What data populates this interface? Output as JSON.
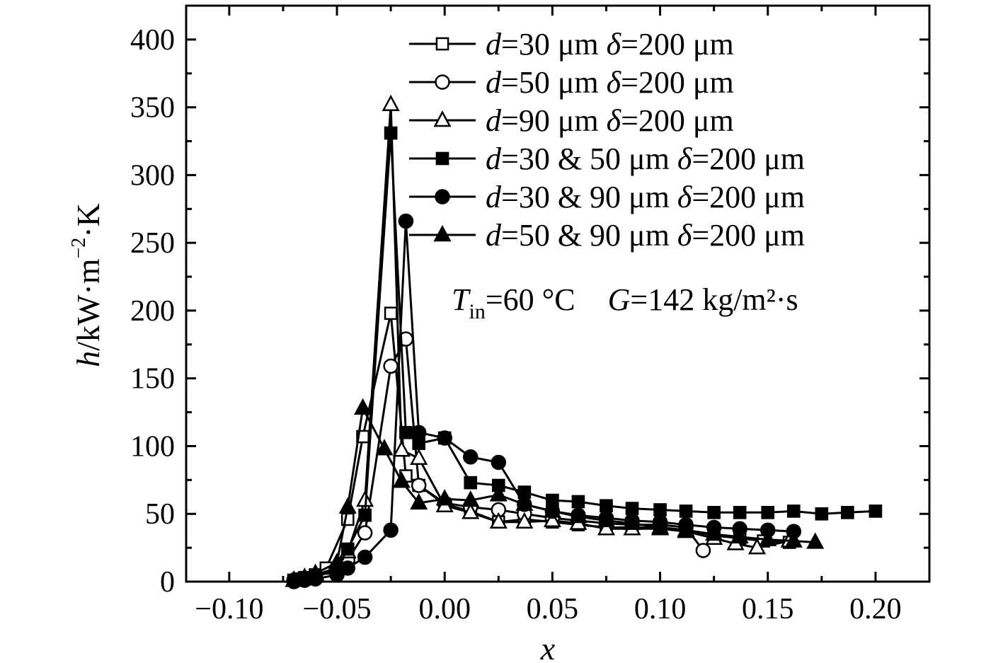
{
  "chart_data": {
    "type": "line",
    "xlabel": "x",
    "ylabel_parts": [
      "h",
      "/kW·m",
      "−2",
      "·K"
    ],
    "xlim": [
      -0.12,
      0.225
    ],
    "ylim": [
      0,
      425
    ],
    "x_ticks": [
      -0.1,
      -0.05,
      0.0,
      0.05,
      0.1,
      0.15,
      0.2
    ],
    "x_tick_labels": [
      "−0.10",
      "−0.05",
      "0.00",
      "0.05",
      "0.10",
      "0.15",
      "0.20"
    ],
    "y_ticks": [
      0,
      50,
      100,
      150,
      200,
      250,
      300,
      350,
      400
    ],
    "y_tick_labels": [
      "0",
      "50",
      "100",
      "150",
      "200",
      "250",
      "300",
      "350",
      "400"
    ],
    "annotation": {
      "T_sym": "T",
      "T_sub": "in",
      "T_value": "=60 °C",
      "G_sym": "G",
      "G_value": "=142 kg/m²·s"
    },
    "series": [
      {
        "name_parts": [
          "d",
          "=30 μm ",
          "δ",
          "=200 μm"
        ],
        "marker": "square-open",
        "points": [
          [
            -0.07,
            1
          ],
          [
            -0.068,
            2
          ],
          [
            -0.065,
            3
          ],
          [
            -0.06,
            5
          ],
          [
            -0.055,
            10
          ],
          [
            -0.045,
            46
          ],
          [
            -0.038,
            107
          ],
          [
            -0.025,
            198
          ],
          [
            -0.018,
            78
          ],
          [
            -0.012,
            71
          ],
          [
            0.0,
            57
          ],
          [
            0.012,
            52
          ],
          [
            0.025,
            44
          ],
          [
            0.037,
            46
          ],
          [
            0.05,
            44
          ],
          [
            0.062,
            42
          ],
          [
            0.075,
            40
          ],
          [
            0.087,
            40
          ],
          [
            0.1,
            40
          ],
          [
            0.112,
            38
          ],
          [
            0.125,
            34
          ],
          [
            0.137,
            32
          ],
          [
            0.148,
            30
          ],
          [
            0.16,
            29
          ]
        ]
      },
      {
        "name_parts": [
          "d",
          "=50 μm ",
          "δ",
          "=200 μm"
        ],
        "marker": "circle-open",
        "points": [
          [
            -0.07,
            1
          ],
          [
            -0.065,
            2
          ],
          [
            -0.06,
            4
          ],
          [
            -0.05,
            8
          ],
          [
            -0.045,
            16
          ],
          [
            -0.037,
            36
          ],
          [
            -0.025,
            159
          ],
          [
            -0.018,
            179
          ],
          [
            -0.012,
            71
          ],
          [
            0.0,
            58
          ],
          [
            0.012,
            55
          ],
          [
            0.025,
            53
          ],
          [
            0.037,
            50
          ],
          [
            0.05,
            47
          ],
          [
            0.062,
            45
          ],
          [
            0.075,
            43
          ],
          [
            0.087,
            42
          ],
          [
            0.1,
            42
          ],
          [
            0.112,
            40
          ],
          [
            0.12,
            23
          ]
        ]
      },
      {
        "name_parts": [
          "d",
          "=90 μm ",
          "δ",
          "=200 μm"
        ],
        "marker": "triangle-open",
        "points": [
          [
            -0.07,
            1
          ],
          [
            -0.065,
            3
          ],
          [
            -0.06,
            5
          ],
          [
            -0.05,
            10
          ],
          [
            -0.045,
            22
          ],
          [
            -0.037,
            60
          ],
          [
            -0.025,
            352
          ],
          [
            -0.02,
            97
          ],
          [
            -0.012,
            91
          ],
          [
            0.0,
            56
          ],
          [
            0.012,
            51
          ],
          [
            0.025,
            44
          ],
          [
            0.037,
            44
          ],
          [
            0.05,
            45
          ],
          [
            0.062,
            43
          ],
          [
            0.075,
            39
          ],
          [
            0.087,
            39
          ],
          [
            0.1,
            39
          ],
          [
            0.112,
            37
          ],
          [
            0.125,
            32
          ],
          [
            0.135,
            28
          ],
          [
            0.145,
            25
          ],
          [
            0.16,
            30
          ]
        ]
      },
      {
        "name_parts": [
          "d",
          "=30 & 50 μm ",
          "δ",
          "=200 μm"
        ],
        "marker": "square-filled",
        "points": [
          [
            -0.07,
            1
          ],
          [
            -0.065,
            2
          ],
          [
            -0.06,
            4
          ],
          [
            -0.05,
            10
          ],
          [
            -0.045,
            24
          ],
          [
            -0.037,
            49
          ],
          [
            -0.025,
            331
          ],
          [
            -0.018,
            110
          ],
          [
            -0.012,
            102
          ],
          [
            0.0,
            106
          ],
          [
            0.012,
            73
          ],
          [
            0.025,
            71
          ],
          [
            0.037,
            66
          ],
          [
            0.05,
            60
          ],
          [
            0.062,
            59
          ],
          [
            0.075,
            56
          ],
          [
            0.087,
            54
          ],
          [
            0.1,
            53
          ],
          [
            0.112,
            52
          ],
          [
            0.125,
            51
          ],
          [
            0.137,
            51
          ],
          [
            0.15,
            51
          ],
          [
            0.162,
            52
          ],
          [
            0.175,
            50
          ],
          [
            0.187,
            51
          ],
          [
            0.2,
            52
          ]
        ]
      },
      {
        "name_parts": [
          "d",
          "=30 & 90 μm ",
          "δ",
          "=200 μm"
        ],
        "marker": "circle-filled",
        "points": [
          [
            -0.07,
            0
          ],
          [
            -0.065,
            1
          ],
          [
            -0.06,
            2
          ],
          [
            -0.05,
            5
          ],
          [
            -0.045,
            10
          ],
          [
            -0.037,
            18
          ],
          [
            -0.025,
            38
          ],
          [
            -0.018,
            266
          ],
          [
            -0.012,
            110
          ],
          [
            0.0,
            106
          ],
          [
            0.012,
            92
          ],
          [
            0.025,
            88
          ],
          [
            0.037,
            57
          ],
          [
            0.05,
            52
          ],
          [
            0.062,
            49
          ],
          [
            0.075,
            47
          ],
          [
            0.087,
            45
          ],
          [
            0.1,
            44
          ],
          [
            0.112,
            42
          ],
          [
            0.125,
            40
          ],
          [
            0.137,
            39
          ],
          [
            0.15,
            38
          ],
          [
            0.162,
            37
          ]
        ]
      },
      {
        "name_parts": [
          "d",
          "=50 & 90 μm ",
          "δ",
          "=200 μm"
        ],
        "marker": "triangle-filled",
        "points": [
          [
            -0.07,
            1
          ],
          [
            -0.065,
            3
          ],
          [
            -0.06,
            6
          ],
          [
            -0.05,
            14
          ],
          [
            -0.045,
            55
          ],
          [
            -0.038,
            128
          ],
          [
            -0.028,
            98
          ],
          [
            -0.02,
            74
          ],
          [
            -0.012,
            58
          ],
          [
            0.0,
            61
          ],
          [
            0.012,
            60
          ],
          [
            0.025,
            64
          ],
          [
            0.037,
            57
          ],
          [
            0.05,
            52
          ],
          [
            0.062,
            48
          ],
          [
            0.075,
            45
          ],
          [
            0.087,
            43
          ],
          [
            0.1,
            40
          ],
          [
            0.112,
            38
          ],
          [
            0.125,
            35
          ],
          [
            0.137,
            33
          ],
          [
            0.15,
            31
          ],
          [
            0.162,
            30
          ],
          [
            0.172,
            29
          ]
        ]
      }
    ]
  }
}
